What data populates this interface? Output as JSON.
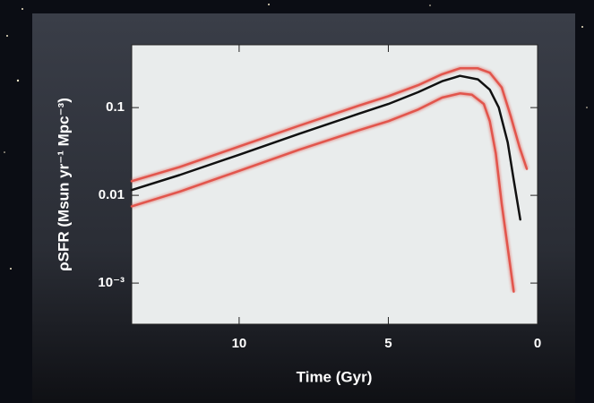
{
  "chart_data": {
    "type": "line",
    "xlabel": "Time (Gyr)",
    "ylabel": "ρSFR (Msun yr⁻¹ Mpc⁻³)",
    "log_y": true,
    "xlim": [
      13.6,
      0
    ],
    "xticks": [
      10,
      5,
      0
    ],
    "ylim": [
      0.00034,
      0.52
    ],
    "yticks": [
      0.1,
      0.01,
      {
        "value": 0.001,
        "label": "10⁻³"
      }
    ],
    "series": [
      {
        "color": "#e2554c",
        "x": [
          13.6,
          12,
          10,
          8,
          6,
          5,
          4,
          3.2,
          2.6,
          2.0,
          1.6,
          1.2,
          0.9,
          0.6,
          0.36
        ],
        "values": [
          0.0145,
          0.021,
          0.036,
          0.062,
          0.105,
          0.135,
          0.18,
          0.24,
          0.28,
          0.28,
          0.25,
          0.17,
          0.08,
          0.035,
          0.02
        ]
      },
      {
        "color": "#111111",
        "x": [
          13.6,
          12,
          10,
          8,
          6,
          5,
          4,
          3.2,
          2.6,
          2.0,
          1.6,
          1.3,
          1.0,
          0.8,
          0.58
        ],
        "values": [
          0.0115,
          0.017,
          0.029,
          0.05,
          0.085,
          0.11,
          0.15,
          0.2,
          0.23,
          0.21,
          0.16,
          0.1,
          0.04,
          0.015,
          0.0053
        ]
      },
      {
        "color": "#e2554c",
        "x": [
          13.6,
          12,
          10,
          8,
          6,
          5,
          4,
          3.2,
          2.6,
          2.2,
          1.8,
          1.6,
          1.4,
          1.2,
          0.8
        ],
        "values": [
          0.0075,
          0.011,
          0.019,
          0.033,
          0.055,
          0.07,
          0.095,
          0.13,
          0.145,
          0.14,
          0.11,
          0.07,
          0.03,
          0.008,
          0.0008
        ]
      }
    ]
  }
}
